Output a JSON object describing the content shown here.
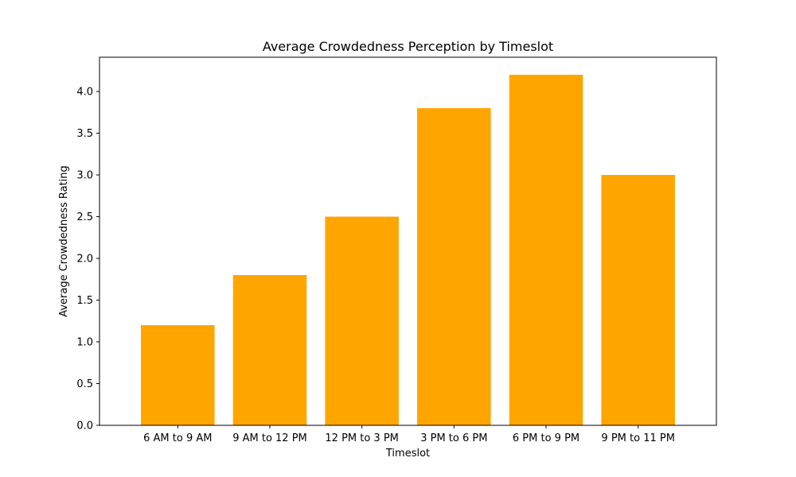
{
  "chart_data": {
    "type": "bar",
    "title": "Average Crowdedness Perception by Timeslot",
    "xlabel": "Timeslot",
    "ylabel": "Average Crowdedness Rating",
    "categories": [
      "6 AM to 9 AM",
      "9 AM to 12 PM",
      "12 PM to 3 PM",
      "3 PM to 6 PM",
      "6 PM to 9 PM",
      "9 PM to 11 PM"
    ],
    "values": [
      1.2,
      1.8,
      2.5,
      3.8,
      4.2,
      3.0
    ],
    "ylim": [
      0,
      4.41
    ],
    "yticks": [
      0.0,
      0.5,
      1.0,
      1.5,
      2.0,
      2.5,
      3.0,
      3.5,
      4.0
    ],
    "ytick_labels": [
      "0.0",
      "0.5",
      "1.0",
      "1.5",
      "2.0",
      "2.5",
      "3.0",
      "3.5",
      "4.0"
    ],
    "grid": false,
    "legend": "none",
    "bar_color": "#ffa500"
  }
}
